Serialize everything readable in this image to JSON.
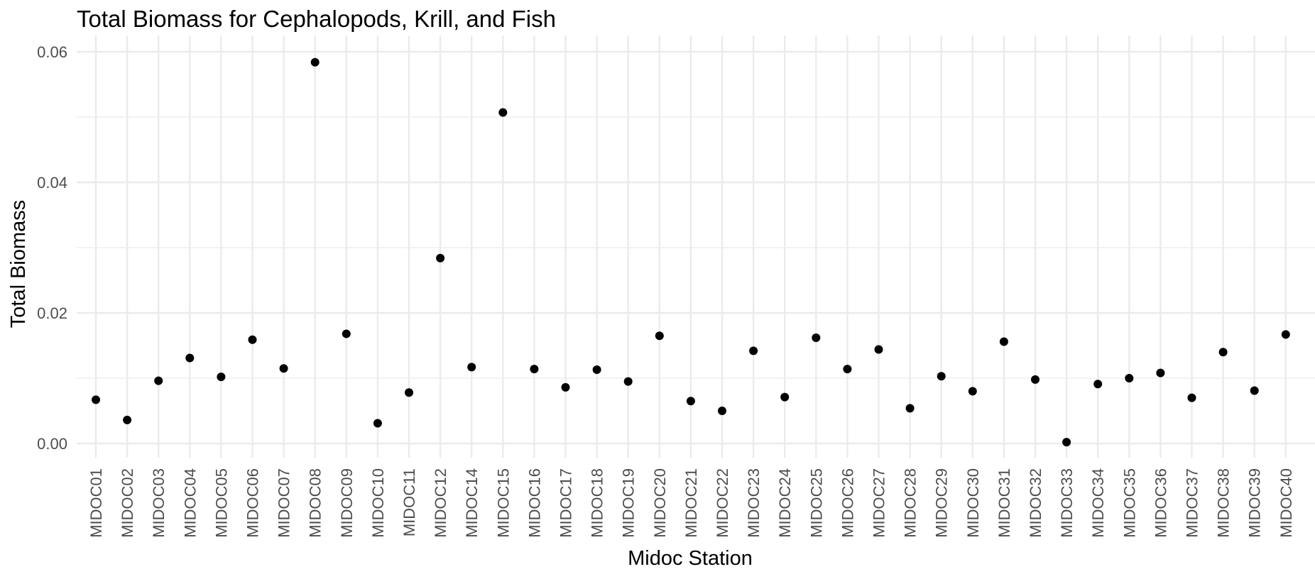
{
  "chart_data": {
    "type": "scatter",
    "title": "Total Biomass for Cephalopods, Krill, and Fish",
    "xlabel": "Midoc Station",
    "ylabel": "Total Biomass",
    "categories": [
      "MIDOC01",
      "MIDOC02",
      "MIDOC03",
      "MIDOC04",
      "MIDOC05",
      "MIDOC06",
      "MIDOC07",
      "MIDOC08",
      "MIDOC09",
      "MIDOC10",
      "MIDOC11",
      "MIDOC12",
      "MIDOC14",
      "MIDOC15",
      "MIDOC16",
      "MIDOC17",
      "MIDOC18",
      "MIDOC19",
      "MIDOC20",
      "MIDOC21",
      "MIDOC22",
      "MIDOC23",
      "MIDOC24",
      "MIDOC25",
      "MIDOC26",
      "MIDOC27",
      "MIDOC28",
      "MIDOC29",
      "MIDOC30",
      "MIDOC31",
      "MIDOC32",
      "MIDOC33",
      "MIDOC34",
      "MIDOC35",
      "MIDOC36",
      "MIDOC37",
      "MIDOC38",
      "MIDOC39",
      "MIDOC40"
    ],
    "values": [
      0.0067,
      0.0036,
      0.0096,
      0.0131,
      0.0102,
      0.0159,
      0.0115,
      0.0584,
      0.0168,
      0.0031,
      0.0078,
      0.0284,
      0.0117,
      0.0507,
      0.0114,
      0.0086,
      0.0113,
      0.0095,
      0.0165,
      0.0065,
      0.005,
      0.0142,
      0.0071,
      0.0162,
      0.0114,
      0.0144,
      0.0054,
      0.0103,
      0.008,
      0.0156,
      0.0098,
      0.0002,
      0.0091,
      0.01,
      0.0108,
      0.007,
      0.014,
      0.0081,
      0.0167
    ],
    "ylim": [
      -0.0021,
      0.0618
    ],
    "yticks": [
      0.0,
      0.02,
      0.04,
      0.06
    ],
    "ytick_labels": [
      "0.00",
      "0.02",
      "0.04",
      "0.06"
    ],
    "point_color": "#000000",
    "grid": true,
    "legend": "none"
  }
}
